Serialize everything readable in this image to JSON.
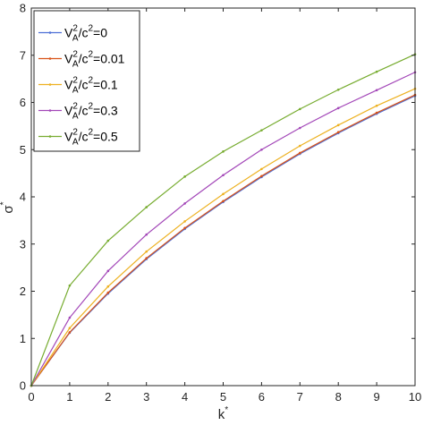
{
  "chart_data": {
    "type": "line",
    "x": [
      0,
      1,
      2,
      3,
      4,
      5,
      6,
      7,
      8,
      9,
      10
    ],
    "series": [
      {
        "name": "0",
        "color": "#4d6fd6",
        "values": [
          0,
          1.12,
          1.95,
          2.68,
          3.32,
          3.89,
          4.42,
          4.91,
          5.35,
          5.76,
          6.14
        ]
      },
      {
        "name": "0.01",
        "color": "#d95319",
        "values": [
          0,
          1.13,
          1.97,
          2.7,
          3.34,
          3.91,
          4.44,
          4.93,
          5.37,
          5.78,
          6.16
        ]
      },
      {
        "name": "0.1",
        "color": "#edb120",
        "values": [
          0,
          1.22,
          2.1,
          2.84,
          3.48,
          4.06,
          4.59,
          5.08,
          5.52,
          5.93,
          6.29
        ]
      },
      {
        "name": "0.3",
        "color": "#a347b8",
        "values": [
          0,
          1.44,
          2.43,
          3.2,
          3.86,
          4.46,
          5.0,
          5.46,
          5.88,
          6.26,
          6.64
        ]
      },
      {
        "name": "0.5",
        "color": "#77ac30",
        "values": [
          0,
          2.12,
          3.07,
          3.78,
          4.43,
          4.96,
          5.41,
          5.86,
          6.27,
          6.65,
          7.02
        ]
      }
    ],
    "xlabel": "k",
    "xlabel_sup": "*",
    "ylabel": "σ",
    "ylabel_sup": "*",
    "xlim": [
      0,
      10
    ],
    "ylim": [
      0,
      8
    ],
    "xticks": [
      "0",
      "1",
      "2",
      "3",
      "4",
      "5",
      "6",
      "7",
      "8",
      "9",
      "10"
    ],
    "yticks": [
      "0",
      "1",
      "2",
      "3",
      "4",
      "5",
      "6",
      "7",
      "8"
    ],
    "legend_prefix": "V",
    "legend_sub": "A",
    "legend_sup": "2",
    "legend_mid": "/c",
    "legend_sup2": "2",
    "legend_eq": "=",
    "legend_position": "top-left",
    "grid": false
  }
}
